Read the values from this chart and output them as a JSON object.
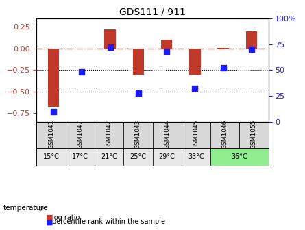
{
  "title": "GDS111 / 911",
  "samples": [
    "GSM1041",
    "GSM1047",
    "GSM1042",
    "GSM1043",
    "GSM1044",
    "GSM1045",
    "GSM1046",
    "GSM1055"
  ],
  "temperatures": [
    "15°C",
    "17°C",
    "21°C",
    "25°C",
    "29°C",
    "33°C",
    "36°C",
    "36°C"
  ],
  "temp_groups": [
    1,
    1,
    1,
    1,
    1,
    1,
    2,
    2
  ],
  "log_ratios": [
    -0.68,
    -0.01,
    0.22,
    -0.3,
    0.1,
    -0.3,
    0.01,
    0.2
  ],
  "percentile_ranks": [
    10,
    48,
    72,
    28,
    68,
    32,
    52,
    70
  ],
  "bar_color": "#c0392b",
  "dot_color": "#1a1aff",
  "bg_color": "#ffffff",
  "plot_bg": "#ffffff",
  "ylim_left": [
    -0.85,
    0.35
  ],
  "ylim_right": [
    0,
    100
  ],
  "yticks_left": [
    0.25,
    0.0,
    -0.25,
    -0.5,
    -0.75
  ],
  "yticks_right": [
    100,
    75,
    50,
    25,
    0
  ],
  "hline_y": [
    0.0,
    -0.25,
    -0.5
  ],
  "hline_styles": [
    "dash-dot",
    "dot",
    "dot"
  ],
  "temp_colors": [
    "#d0d0d0",
    "#90ee90"
  ],
  "temp_label": "temperature"
}
